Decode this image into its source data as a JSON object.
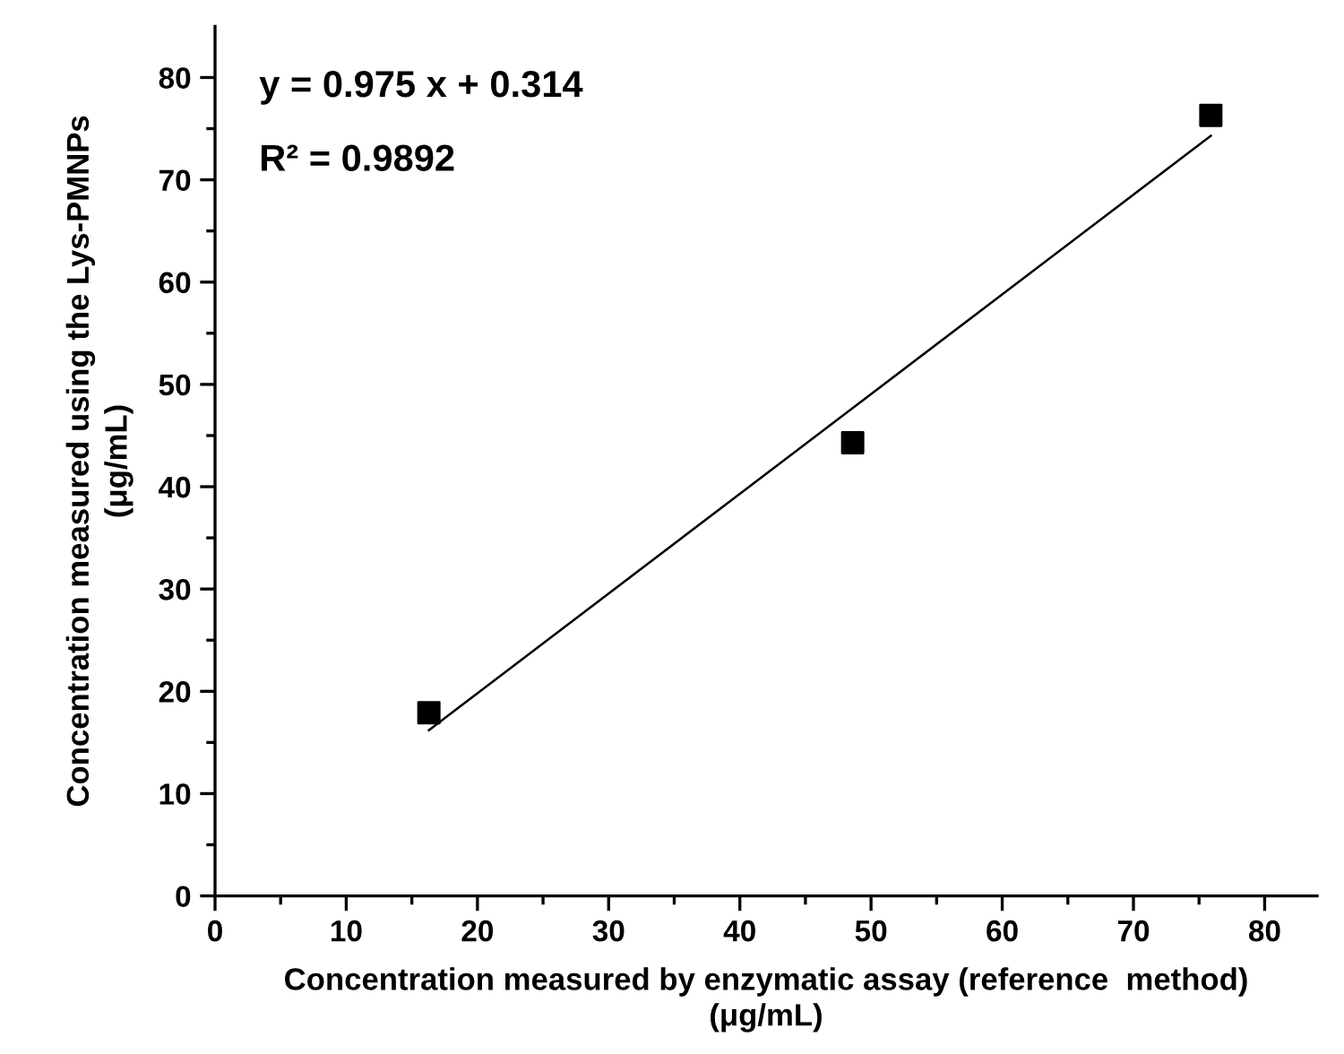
{
  "chart_data": {
    "type": "scatter",
    "xlabel": "Concentration measured by enzymatic assay (reference  method)\n(μg/mL)",
    "ylabel": "Concentration measured using the Lys-PMNPs\n(μg/mL)",
    "series": [
      {
        "color": "#000000",
        "marker": "square",
        "x": [
          16.3,
          48.6,
          75.9
        ],
        "values": [
          17.9,
          44.3,
          76.3
        ]
      },
      {
        "type": "line",
        "color": "#000000",
        "line_style": "solid",
        "marker": "none",
        "x": [
          16.3,
          75.9
        ],
        "values": [
          16.2,
          74.3
        ]
      }
    ],
    "annotations": [
      "y = 0.975 x + 0.314",
      "R² = 0.9892"
    ],
    "xlim": [
      0,
      84
    ],
    "ylim": [
      0,
      85
    ],
    "xticks": [
      0,
      {
        "value": 5,
        "label": null
      },
      10,
      {
        "value": 15,
        "label": null
      },
      20,
      {
        "value": 25,
        "label": null
      },
      30,
      {
        "value": 35,
        "label": null
      },
      40,
      {
        "value": 45,
        "label": null
      },
      50,
      {
        "value": 55,
        "label": null
      },
      60,
      {
        "value": 65,
        "label": null
      },
      70,
      {
        "value": 75,
        "label": null
      },
      80
    ],
    "yticks": [
      0,
      {
        "value": 5,
        "label": null
      },
      10,
      {
        "value": 15,
        "label": null
      },
      20,
      {
        "value": 25,
        "label": null
      },
      30,
      {
        "value": 35,
        "label": null
      },
      40,
      {
        "value": 45,
        "label": null
      },
      50,
      {
        "value": 55,
        "label": null
      },
      60,
      {
        "value": 65,
        "label": null
      },
      70,
      {
        "value": 75,
        "label": null
      },
      80
    ],
    "grid": false,
    "legend": false
  }
}
